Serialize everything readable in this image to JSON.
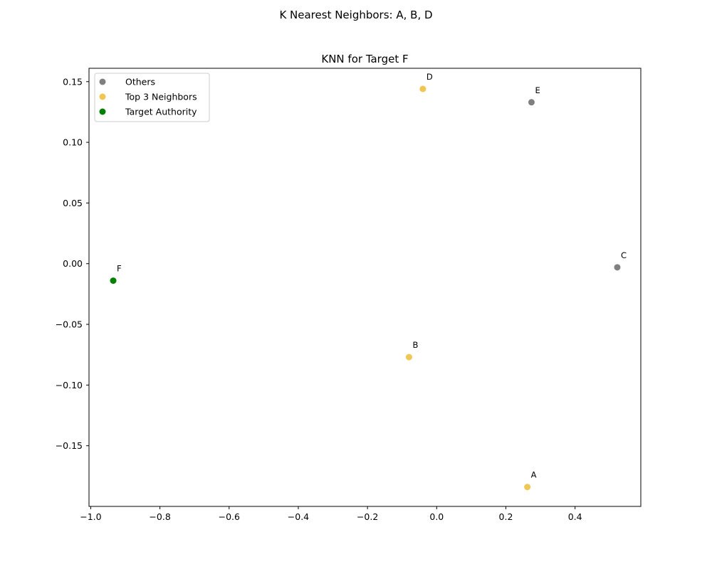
{
  "figure": {
    "suptitle": "K Nearest Neighbors: A, B, D"
  },
  "chart_data": {
    "type": "scatter",
    "title": "KNN for Target F",
    "xlabel": "",
    "ylabel": "",
    "xlim": [
      -1.005,
      0.59
    ],
    "ylim": [
      -0.2,
      0.161
    ],
    "xticks": [
      -1.0,
      -0.8,
      -0.6,
      -0.4,
      -0.2,
      0.0,
      0.2,
      0.4
    ],
    "xtick_labels": [
      "−1.0",
      "−0.8",
      "−0.6",
      "−0.4",
      "−0.2",
      "0.0",
      "0.2",
      "0.4"
    ],
    "yticks": [
      -0.15,
      -0.1,
      -0.05,
      0.0,
      0.05,
      0.1,
      0.15
    ],
    "ytick_labels": [
      "−0.15",
      "−0.10",
      "−0.05",
      "0.00",
      "0.05",
      "0.10",
      "0.15"
    ],
    "grid": false,
    "legend_position": "top-left",
    "series": [
      {
        "name": "Others",
        "color": "#808080",
        "points": [
          {
            "label": "C",
            "x": 0.522,
            "y": -0.003
          },
          {
            "label": "E",
            "x": 0.274,
            "y": 0.133
          }
        ]
      },
      {
        "name": "Top 3 Neighbors",
        "color": "#f0c755",
        "points": [
          {
            "label": "A",
            "x": 0.262,
            "y": -0.184
          },
          {
            "label": "B",
            "x": -0.08,
            "y": -0.077
          },
          {
            "label": "D",
            "x": -0.04,
            "y": 0.144
          }
        ]
      },
      {
        "name": "Target Authority",
        "color": "#008000",
        "points": [
          {
            "label": "F",
            "x": -0.935,
            "y": -0.014
          }
        ]
      }
    ]
  }
}
